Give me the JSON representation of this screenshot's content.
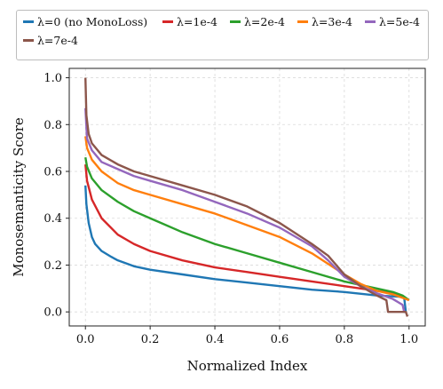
{
  "chart_data": {
    "type": "line",
    "xlabel": "Normalized Index",
    "ylabel": "Monosemanticity Score",
    "xlim": [
      -0.05,
      1.05
    ],
    "ylim": [
      -0.06,
      1.04
    ],
    "xticks": [
      0.0,
      0.2,
      0.4,
      0.6,
      0.8,
      1.0
    ],
    "xtick_labels": [
      "0.0",
      "0.2",
      "0.4",
      "0.6",
      "0.8",
      "1.0"
    ],
    "yticks": [
      0.0,
      0.2,
      0.4,
      0.6,
      0.8,
      1.0
    ],
    "ytick_labels": [
      "0.0",
      "0.2",
      "0.4",
      "0.6",
      "0.8",
      "1.0"
    ],
    "grid": true,
    "legend_placement": "top, above plot",
    "series": [
      {
        "name": "λ=0 (no MonoLoss)",
        "color": "#1f77b4",
        "x": [
          0,
          0.003,
          0.01,
          0.02,
          0.03,
          0.05,
          0.08,
          0.1,
          0.15,
          0.2,
          0.3,
          0.4,
          0.5,
          0.6,
          0.7,
          0.8,
          0.9,
          0.97,
          0.985,
          0.99
        ],
        "y": [
          0.54,
          0.46,
          0.38,
          0.32,
          0.29,
          0.26,
          0.235,
          0.22,
          0.195,
          0.18,
          0.16,
          0.14,
          0.125,
          0.11,
          0.095,
          0.085,
          0.07,
          0.065,
          0.06,
          0.0
        ]
      },
      {
        "name": "λ=1e-4",
        "color": "#d62728",
        "x": [
          0,
          0.005,
          0.02,
          0.05,
          0.1,
          0.15,
          0.2,
          0.3,
          0.4,
          0.5,
          0.6,
          0.7,
          0.8,
          0.9,
          0.95,
          0.98,
          1.0
        ],
        "y": [
          0.63,
          0.56,
          0.48,
          0.4,
          0.33,
          0.29,
          0.26,
          0.22,
          0.19,
          0.17,
          0.15,
          0.13,
          0.11,
          0.09,
          0.08,
          0.065,
          0.05
        ]
      },
      {
        "name": "λ=2e-4",
        "color": "#2ca02c",
        "x": [
          0,
          0.005,
          0.02,
          0.05,
          0.1,
          0.15,
          0.2,
          0.3,
          0.4,
          0.5,
          0.6,
          0.7,
          0.8,
          0.9,
          0.95,
          0.98,
          1.0
        ],
        "y": [
          0.66,
          0.62,
          0.57,
          0.52,
          0.47,
          0.43,
          0.4,
          0.34,
          0.29,
          0.25,
          0.21,
          0.17,
          0.13,
          0.1,
          0.085,
          0.07,
          0.05
        ]
      },
      {
        "name": "λ=3e-4",
        "color": "#ff7f0e",
        "x": [
          0,
          0.005,
          0.02,
          0.05,
          0.1,
          0.15,
          0.2,
          0.3,
          0.4,
          0.5,
          0.6,
          0.7,
          0.8,
          0.85,
          0.9,
          0.95,
          1.0
        ],
        "y": [
          0.75,
          0.7,
          0.65,
          0.6,
          0.55,
          0.52,
          0.5,
          0.46,
          0.42,
          0.37,
          0.32,
          0.25,
          0.16,
          0.12,
          0.09,
          0.075,
          0.05
        ]
      },
      {
        "name": "λ=5e-4",
        "color": "#9467bd",
        "x": [
          0,
          0.005,
          0.02,
          0.05,
          0.1,
          0.15,
          0.2,
          0.3,
          0.4,
          0.5,
          0.6,
          0.7,
          0.75,
          0.8,
          0.85,
          0.9,
          0.95,
          0.98,
          0.985,
          0.99
        ],
        "y": [
          0.87,
          0.74,
          0.69,
          0.64,
          0.61,
          0.58,
          0.56,
          0.52,
          0.47,
          0.42,
          0.36,
          0.28,
          0.22,
          0.15,
          0.11,
          0.08,
          0.055,
          0.03,
          0.0,
          0.0
        ]
      },
      {
        "name": "λ=7e-4",
        "color": "#8c564b",
        "x": [
          0,
          0.003,
          0.01,
          0.02,
          0.05,
          0.1,
          0.15,
          0.2,
          0.3,
          0.4,
          0.5,
          0.6,
          0.7,
          0.75,
          0.8,
          0.85,
          0.9,
          0.93,
          0.935,
          0.99,
          0.995
        ],
        "y": [
          1.0,
          0.84,
          0.76,
          0.72,
          0.67,
          0.63,
          0.6,
          0.58,
          0.54,
          0.5,
          0.45,
          0.38,
          0.29,
          0.24,
          0.16,
          0.11,
          0.07,
          0.05,
          0.0,
          0.0,
          -0.02
        ]
      }
    ]
  }
}
